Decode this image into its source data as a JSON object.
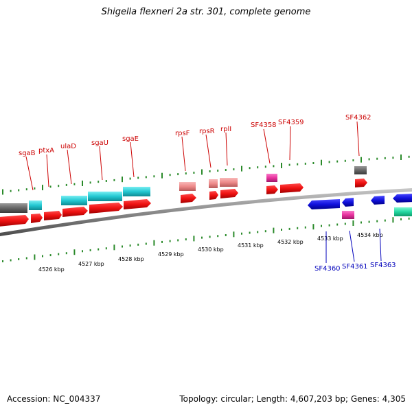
{
  "title": "Shigella flexneri 2a str. 301, complete genome",
  "footer": {
    "accession": "Accession: NC_004337",
    "summary": "Topology: circular; Length: 4,607,203 bp; Genes: 4,305"
  },
  "colors": {
    "cds": "#ee1111",
    "cds_reverse": "#1111dd",
    "gene_cyan": "#22c8d2",
    "gene_pink": "#ee8a8a",
    "gene_magenta": "#e8329e",
    "gene_gray": "#666666",
    "gene_green": "#22d8a0",
    "tick": "#2a8a2a",
    "forward_label": "#cc0000",
    "reverse_label": "#0000bb",
    "backbone": "#8a8a8a"
  },
  "axis_labels": [
    "4526 kbp",
    "4527 kbp",
    "4528 kbp",
    "4529 kbp",
    "4530 kbp",
    "4531 kbp",
    "4532 kbp",
    "4533 kbp",
    "4534 kbp"
  ],
  "forward_gene_labels": [
    "sgaB",
    "ptxA",
    "ulaD",
    "sgaU",
    "sgaE",
    "rpsF",
    "rpsR",
    "rplI",
    "SF4358",
    "SF4359",
    "SF4362"
  ],
  "reverse_gene_labels": [
    "SF4360",
    "SF4361",
    "SF4363"
  ]
}
